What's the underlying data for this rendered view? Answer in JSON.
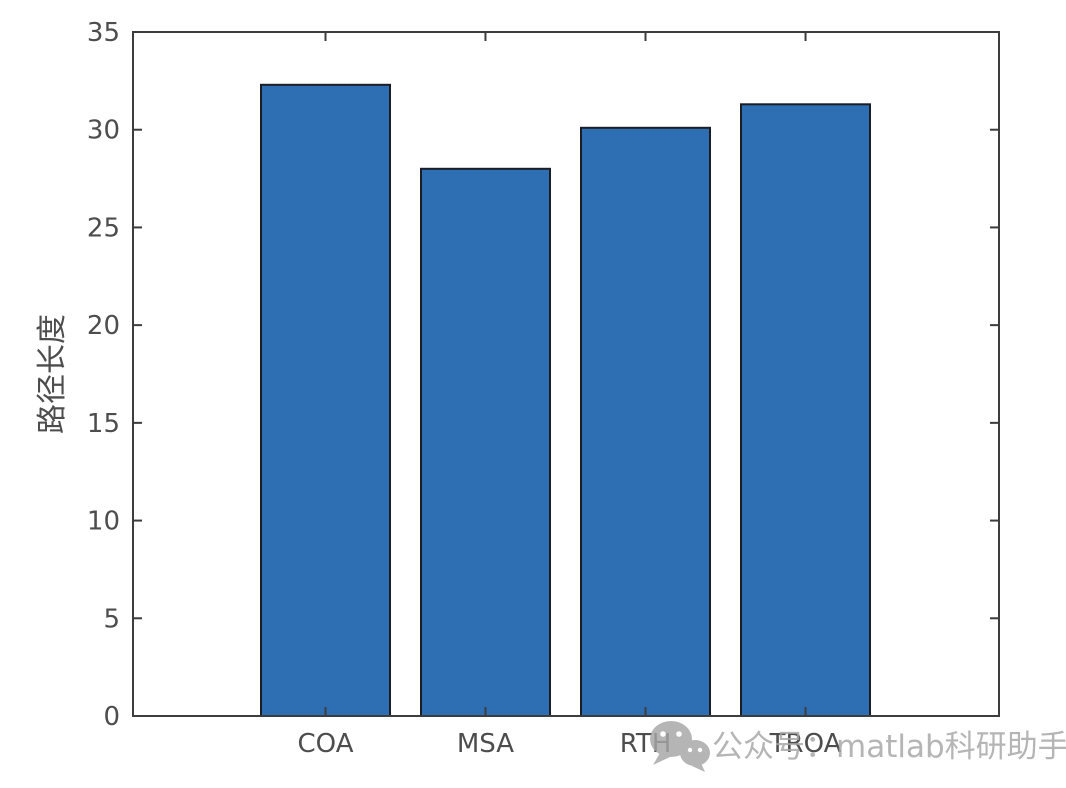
{
  "chart_data": {
    "type": "bar",
    "categories": [
      "COA",
      "MSA",
      "RTH",
      "TROA"
    ],
    "values": [
      32.3,
      28.0,
      30.1,
      31.3
    ],
    "title": "",
    "xlabel": "",
    "ylabel": "路径长度",
    "ylim": [
      0,
      35
    ],
    "yticks": [
      0,
      5,
      10,
      15,
      20,
      25,
      30,
      35
    ],
    "grid": false,
    "legend": null,
    "colors": {
      "bar_fill": "#2e6fb4",
      "bar_edge": "#1a1d24",
      "axis": "#3d3d3d",
      "tick_text": "#4d4d4d"
    }
  },
  "watermark": {
    "text": "公众号：matlab科研助手",
    "icon": "wechat-icon",
    "color": "#a6a6a6"
  }
}
